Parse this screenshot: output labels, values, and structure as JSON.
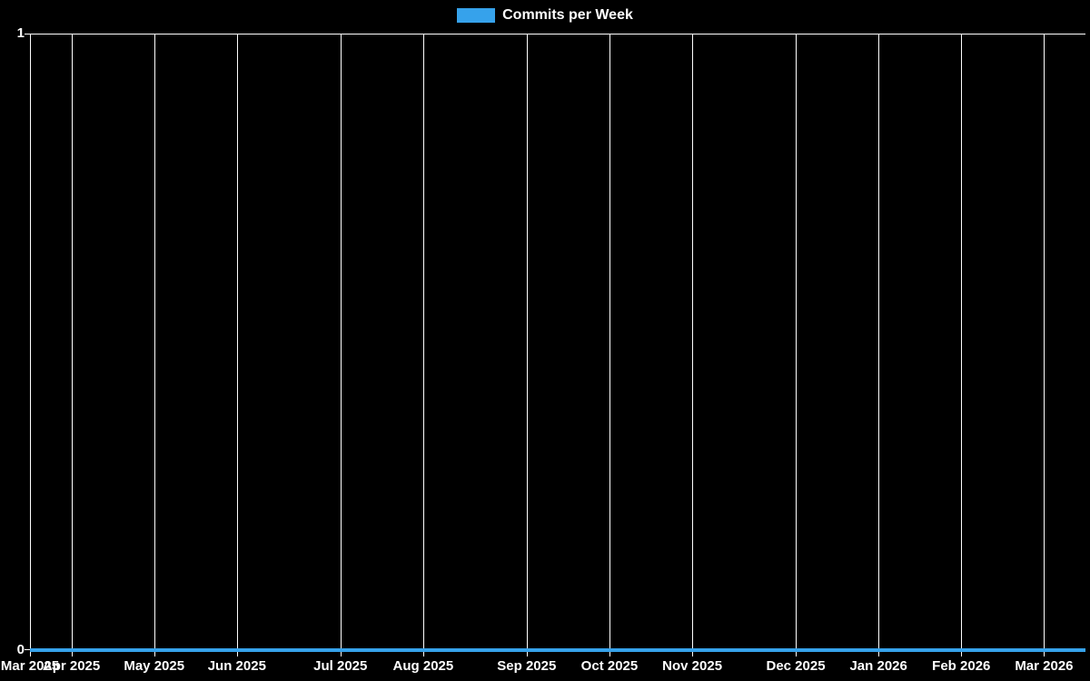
{
  "legend": {
    "label": "Commits per Week",
    "swatch_color": "#36a2eb"
  },
  "y_axis": {
    "max_label": "1",
    "min_label": "0"
  },
  "chart_data": {
    "type": "line",
    "title": "",
    "xlabel": "",
    "ylabel": "",
    "ylim": [
      0,
      1
    ],
    "y_tick_labels": [
      "0",
      "1"
    ],
    "grid": "vertical-only",
    "legend_position": "top-center",
    "background_color": "#000000",
    "gridline_color": "#ffffff",
    "text_color": "#ffffff",
    "x_tick_labels": [
      "Mar 2025",
      "Apr 2025",
      "May 2025",
      "Jun 2025",
      "Jul 2025",
      "Aug 2025",
      "Sep 2025",
      "Oct 2025",
      "Nov 2025",
      "Dec 2025",
      "Jan 2026",
      "Feb 2026",
      "Mar 2026"
    ],
    "x_tick_point_index": [
      0,
      2,
      6,
      10,
      15,
      19,
      24,
      28,
      32,
      37,
      41,
      45,
      49
    ],
    "series": [
      {
        "name": "Commits per Week",
        "color": "#36a2eb",
        "line_width": 4,
        "values": [
          0,
          0,
          0,
          0,
          0,
          0,
          0,
          0,
          0,
          0,
          0,
          0,
          0,
          0,
          0,
          0,
          0,
          0,
          0,
          0,
          0,
          0,
          0,
          0,
          0,
          0,
          0,
          0,
          0,
          0,
          0,
          0,
          0,
          0,
          0,
          0,
          0,
          0,
          0,
          0,
          0,
          0,
          0,
          0,
          0,
          0,
          0,
          0,
          0,
          0,
          0,
          0
        ]
      }
    ]
  }
}
